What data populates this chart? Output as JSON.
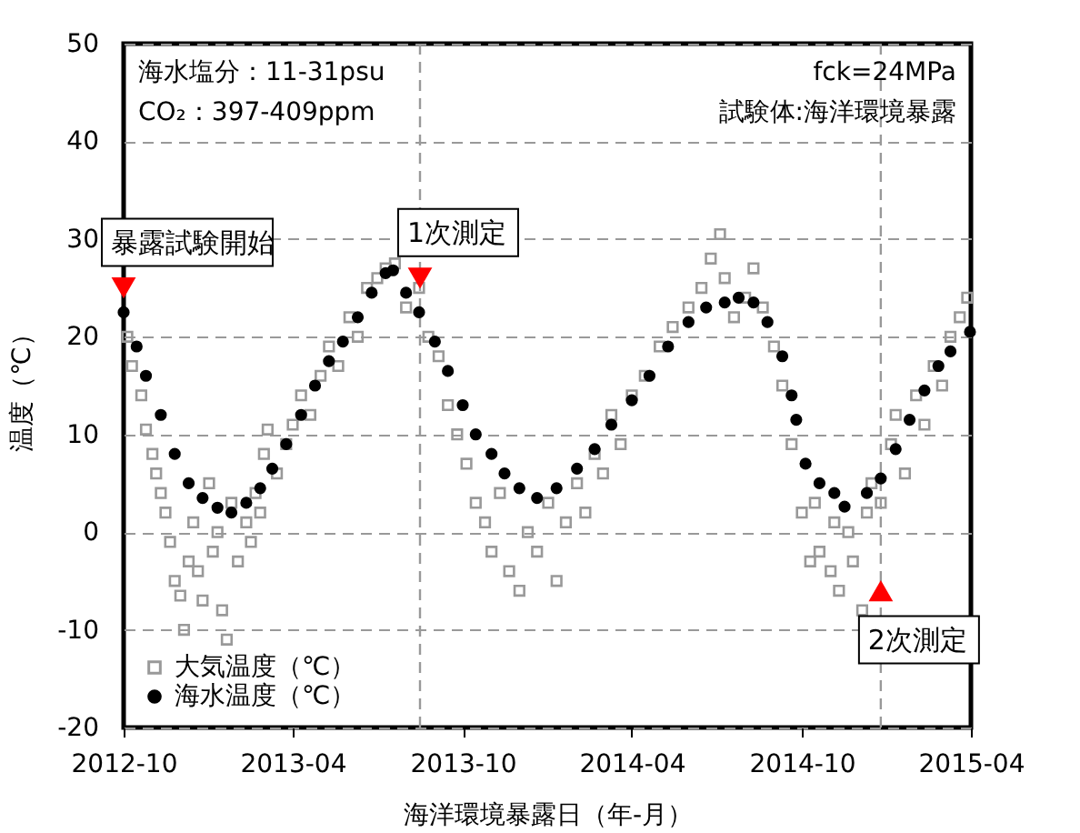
{
  "chart_data": {
    "type": "scatter",
    "xlabel": "海洋環境暴露日（年-月）",
    "ylabel": "温度（℃）",
    "xlim": [
      "2012-10-01",
      "2015-04-01"
    ],
    "xticks": [
      {
        "value": "2012-10-01",
        "label": "2012-10"
      },
      {
        "value": "2013-04-01",
        "label": "2013-04"
      },
      {
        "value": "2013-10-01",
        "label": "2013-10"
      },
      {
        "value": "2014-04-01",
        "label": "2014-04"
      },
      {
        "value": "2014-10-01",
        "label": "2014-10"
      },
      {
        "value": "2015-04-01",
        "label": "2015-04"
      }
    ],
    "ylim": [
      -20,
      50
    ],
    "yticks": [
      -20,
      -10,
      0,
      10,
      20,
      30,
      40,
      50
    ],
    "grid": "y",
    "legend": "bottom left",
    "annotations": [
      "海水塩分：11-31psu",
      "CO₂：397-409ppm",
      "fck=24MPa",
      "試験体:海洋環境暴露",
      {
        "text": "暴露試験開始",
        "x": "2012-10-01",
        "y": 25
      },
      {
        "text": "1次測定",
        "x": "2013-08-16",
        "y": 26
      },
      {
        "text": "2次測定",
        "x": "2014-12-25",
        "y": -6
      }
    ],
    "ref_lines": [
      {
        "axis": "x",
        "value": "2013-08-16",
        "color": "#999999",
        "line_style": "dashed"
      },
      {
        "axis": "x",
        "value": "2014-12-25",
        "color": "#999999",
        "line_style": "dashed"
      }
    ],
    "series": [
      {
        "name": "大気温度（℃）",
        "color": "#999999",
        "marker": "square",
        "x": [
          "2012-10-05",
          "2012-10-10",
          "2012-10-20",
          "2012-10-25",
          "2012-11-01",
          "2012-11-05",
          "2012-11-10",
          "2012-11-15",
          "2012-11-20",
          "2012-11-25",
          "2012-12-01",
          "2012-12-05",
          "2012-12-10",
          "2012-12-15",
          "2012-12-20",
          "2012-12-25",
          "2013-01-01",
          "2013-01-05",
          "2013-01-10",
          "2013-01-15",
          "2013-01-20",
          "2013-01-25",
          "2013-02-01",
          "2013-02-10",
          "2013-02-15",
          "2013-02-20",
          "2013-02-25",
          "2013-03-01",
          "2013-03-05",
          "2013-03-15",
          "2013-03-25",
          "2013-04-01",
          "2013-04-10",
          "2013-04-20",
          "2013-05-01",
          "2013-05-10",
          "2013-05-20",
          "2013-06-01",
          "2013-06-10",
          "2013-06-20",
          "2013-07-01",
          "2013-07-10",
          "2013-07-20",
          "2013-08-01",
          "2013-08-15",
          "2013-08-25",
          "2013-09-05",
          "2013-09-15",
          "2013-09-25",
          "2013-10-05",
          "2013-10-15",
          "2013-10-25",
          "2013-11-01",
          "2013-11-10",
          "2013-11-20",
          "2013-12-01",
          "2013-12-10",
          "2013-12-20",
          "2014-01-01",
          "2014-01-10",
          "2014-01-20",
          "2014-02-01",
          "2014-02-10",
          "2014-02-20",
          "2014-03-01",
          "2014-03-10",
          "2014-03-20",
          "2014-04-01",
          "2014-04-15",
          "2014-05-01",
          "2014-05-15",
          "2014-06-01",
          "2014-06-15",
          "2014-06-25",
          "2014-07-05",
          "2014-07-10",
          "2014-07-20",
          "2014-08-01",
          "2014-08-10",
          "2014-08-20",
          "2014-09-01",
          "2014-09-10",
          "2014-09-20",
          "2014-10-01",
          "2014-10-10",
          "2014-10-15",
          "2014-10-20",
          "2014-11-01",
          "2014-11-05",
          "2014-11-10",
          "2014-11-20",
          "2014-11-25",
          "2014-12-05",
          "2014-12-10",
          "2014-12-15",
          "2014-12-25",
          "2015-01-05",
          "2015-01-10",
          "2015-01-20",
          "2015-02-01",
          "2015-02-10",
          "2015-02-20",
          "2015-03-01",
          "2015-03-10",
          "2015-03-20",
          "2015-03-28"
        ],
        "values": [
          20,
          17,
          14,
          10.5,
          8,
          6,
          4,
          2,
          -1,
          -5,
          -6.5,
          -10,
          -3,
          1,
          -4,
          -7,
          5,
          -2,
          0,
          -8,
          -11,
          3,
          -3,
          1,
          -1,
          4,
          2,
          8,
          10.5,
          6,
          9,
          11,
          14,
          12,
          16,
          19,
          17,
          22,
          20,
          25,
          26,
          27,
          27.5,
          23,
          25,
          20,
          18,
          13,
          10,
          7,
          3,
          1,
          -2,
          4,
          -4,
          -6,
          0,
          -2,
          3,
          -5,
          1,
          5,
          2,
          8,
          6,
          12,
          9,
          14,
          16,
          19,
          21,
          23,
          25,
          28,
          30.5,
          26,
          22,
          24,
          27,
          23,
          19,
          15,
          9,
          2,
          -3,
          3,
          -2,
          -4,
          1,
          -6,
          0,
          -3,
          -8,
          2,
          5,
          3,
          9,
          12,
          6,
          14,
          11,
          17,
          15,
          20,
          22,
          24
        ]
      },
      {
        "name": "海水温度（℃）",
        "color": "#000000",
        "marker": "circle",
        "x": [
          "2012-10-01",
          "2012-10-15",
          "2012-10-25",
          "2012-11-10",
          "2012-11-25",
          "2012-12-10",
          "2012-12-25",
          "2013-01-10",
          "2013-01-25",
          "2013-02-10",
          "2013-02-25",
          "2013-03-10",
          "2013-03-25",
          "2013-04-10",
          "2013-04-25",
          "2013-05-10",
          "2013-05-25",
          "2013-06-10",
          "2013-06-25",
          "2013-07-10",
          "2013-07-18",
          "2013-08-01",
          "2013-08-15",
          "2013-09-01",
          "2013-09-15",
          "2013-10-01",
          "2013-10-15",
          "2013-11-01",
          "2013-11-15",
          "2013-12-01",
          "2013-12-20",
          "2014-01-10",
          "2014-02-01",
          "2014-02-20",
          "2014-03-10",
          "2014-04-01",
          "2014-04-20",
          "2014-05-10",
          "2014-06-01",
          "2014-06-20",
          "2014-07-10",
          "2014-07-25",
          "2014-08-10",
          "2014-08-25",
          "2014-09-10",
          "2014-09-20",
          "2014-09-25",
          "2014-10-05",
          "2014-10-20",
          "2014-11-05",
          "2014-11-16",
          "2014-12-10",
          "2014-12-25",
          "2015-01-10",
          "2015-01-25",
          "2015-02-10",
          "2015-02-25",
          "2015-03-10",
          "2015-03-31"
        ],
        "values": [
          22.5,
          19,
          16,
          12,
          8,
          5,
          3.5,
          2.5,
          2,
          3,
          4.5,
          6.5,
          9,
          12,
          15,
          17.5,
          19.5,
          22,
          24.5,
          26.5,
          26.8,
          24.5,
          22.5,
          19.5,
          16.5,
          13,
          10,
          8,
          6,
          4.5,
          3.5,
          4.5,
          6.5,
          8.5,
          11,
          13.5,
          16,
          19,
          21.5,
          23,
          23.5,
          24,
          23.5,
          21.5,
          18,
          14,
          11.5,
          7,
          5,
          4,
          2.6,
          4,
          5.5,
          8.5,
          11.5,
          14.5,
          17,
          18.5,
          20.5
        ]
      }
    ]
  }
}
